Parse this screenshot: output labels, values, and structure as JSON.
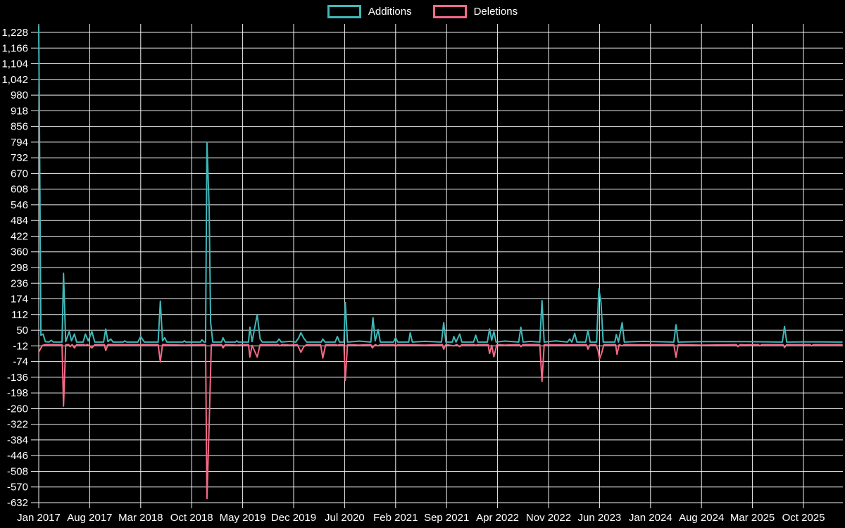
{
  "legend": {
    "items": [
      {
        "label": "Additions",
        "color": "#3fb8ba"
      },
      {
        "label": "Deletions",
        "color": "#f46a87"
      }
    ]
  },
  "chart_data": {
    "type": "line",
    "title": "",
    "xlabel": "",
    "ylabel": "",
    "grid": true,
    "legend_position": "top-center",
    "background_color": "#000000",
    "grid_color": "#f0f0f0",
    "text_color": "#ffffff",
    "x_axis": {
      "unit": "month index from Jan 2017",
      "tick_interval_months": 7,
      "tick_months": [
        0,
        7,
        14,
        21,
        28,
        35,
        42,
        49,
        56,
        63,
        70,
        77,
        84,
        91,
        98,
        105
      ],
      "tick_labels": [
        "Jan 2017",
        "Aug 2017",
        "Mar 2018",
        "Oct 2018",
        "May 2019",
        "Dec 2019",
        "Jul 2020",
        "Feb 2021",
        "Sep 2021",
        "Apr 2022",
        "Nov 2022",
        "Jun 2023",
        "Jan 2024",
        "Aug 2024",
        "Mar 2025",
        "Oct 2025"
      ],
      "domain_months": [
        0,
        110.3
      ]
    },
    "y_axis": {
      "tick_values": [
        1228,
        1166,
        1104,
        1042,
        980,
        918,
        856,
        794,
        732,
        670,
        608,
        546,
        484,
        422,
        360,
        298,
        236,
        174,
        112,
        50,
        -12,
        -74,
        -136,
        -198,
        -260,
        -322,
        -384,
        -446,
        -508,
        -570,
        -632
      ],
      "tick_labels": [
        "1,228",
        "1,166",
        "1,104",
        "1,042",
        "980",
        "918",
        "856",
        "794",
        "732",
        "670",
        "608",
        "546",
        "484",
        "422",
        "360",
        "298",
        "236",
        "174",
        "112",
        "50",
        "-12",
        "-74",
        "-136",
        "-198",
        "-260",
        "-322",
        "-384",
        "-446",
        "-508",
        "-570",
        "-632"
      ],
      "plot_top_value": 1253
    },
    "series": [
      {
        "name": "Additions",
        "color": "#3fb8ba",
        "points": [
          [
            0,
            1253
          ],
          [
            0.3,
            30
          ],
          [
            0.6,
            35
          ],
          [
            0.9,
            5
          ],
          [
            1.4,
            3
          ],
          [
            1.7,
            10
          ],
          [
            2,
            3
          ],
          [
            3.2,
            3
          ],
          [
            3.4,
            275
          ],
          [
            3.7,
            5
          ],
          [
            4.2,
            45
          ],
          [
            4.5,
            8
          ],
          [
            4.9,
            35
          ],
          [
            5.2,
            3
          ],
          [
            6.1,
            3
          ],
          [
            6.4,
            35
          ],
          [
            6.8,
            8
          ],
          [
            7.3,
            45
          ],
          [
            7.7,
            3
          ],
          [
            8.9,
            3
          ],
          [
            9.2,
            55
          ],
          [
            9.5,
            5
          ],
          [
            9.9,
            15
          ],
          [
            10.2,
            3
          ],
          [
            11.6,
            3
          ],
          [
            11.8,
            8
          ],
          [
            12.1,
            3
          ],
          [
            13.6,
            3
          ],
          [
            14,
            25
          ],
          [
            14.5,
            3
          ],
          [
            16.4,
            3
          ],
          [
            16.7,
            165
          ],
          [
            17,
            8
          ],
          [
            17.3,
            20
          ],
          [
            17.6,
            3
          ],
          [
            19.8,
            3
          ],
          [
            20,
            8
          ],
          [
            20.2,
            3
          ],
          [
            22.2,
            3
          ],
          [
            22.4,
            12
          ],
          [
            22.7,
            3
          ],
          [
            22.9,
            3
          ],
          [
            23.1,
            794
          ],
          [
            23.4,
            536
          ],
          [
            23.6,
            81
          ],
          [
            23.9,
            3
          ],
          [
            25.1,
            3
          ],
          [
            25.3,
            20
          ],
          [
            25.6,
            3
          ],
          [
            27,
            3
          ],
          [
            27.2,
            8
          ],
          [
            27.4,
            3
          ],
          [
            28.8,
            3
          ],
          [
            29,
            62
          ],
          [
            29.3,
            5
          ],
          [
            30,
            112
          ],
          [
            30.4,
            15
          ],
          [
            30.7,
            3
          ],
          [
            32.7,
            3
          ],
          [
            33,
            15
          ],
          [
            33.3,
            3
          ],
          [
            34.5,
            6
          ],
          [
            35.3,
            3
          ],
          [
            35.7,
            20
          ],
          [
            36,
            40
          ],
          [
            36.4,
            18
          ],
          [
            36.8,
            3
          ],
          [
            38.8,
            3
          ],
          [
            39,
            15
          ],
          [
            39.3,
            3
          ],
          [
            40.7,
            3
          ],
          [
            41,
            25
          ],
          [
            41.3,
            3
          ],
          [
            41.9,
            3
          ],
          [
            42.1,
            160
          ],
          [
            42.4,
            3
          ],
          [
            44,
            7
          ],
          [
            45.6,
            3
          ],
          [
            45.9,
            100
          ],
          [
            46.2,
            8
          ],
          [
            46.6,
            53
          ],
          [
            46.9,
            3
          ],
          [
            48.7,
            3
          ],
          [
            49,
            20
          ],
          [
            49.3,
            3
          ],
          [
            50.8,
            3
          ],
          [
            51,
            40
          ],
          [
            51.3,
            3
          ],
          [
            53,
            6
          ],
          [
            55.3,
            3
          ],
          [
            55.6,
            80
          ],
          [
            55.9,
            3
          ],
          [
            56.8,
            3
          ],
          [
            57,
            25
          ],
          [
            57.3,
            3
          ],
          [
            57.8,
            35
          ],
          [
            58.1,
            3
          ],
          [
            59.7,
            3
          ],
          [
            60,
            30
          ],
          [
            60.3,
            3
          ],
          [
            61.6,
            3
          ],
          [
            61.9,
            55
          ],
          [
            62.2,
            10
          ],
          [
            62.5,
            45
          ],
          [
            62.8,
            3
          ],
          [
            64,
            7
          ],
          [
            65.9,
            3
          ],
          [
            66.2,
            62
          ],
          [
            66.5,
            3
          ],
          [
            67.5,
            6
          ],
          [
            68.8,
            3
          ],
          [
            69.1,
            167
          ],
          [
            69.4,
            3
          ],
          [
            71,
            8
          ],
          [
            72.6,
            3
          ],
          [
            72.9,
            15
          ],
          [
            73.2,
            3
          ],
          [
            73.6,
            37
          ],
          [
            73.9,
            3
          ],
          [
            75.1,
            3
          ],
          [
            75.4,
            50
          ],
          [
            75.7,
            3
          ],
          [
            76.6,
            3
          ],
          [
            76.9,
            214
          ],
          [
            77.2,
            160
          ],
          [
            77.5,
            3
          ],
          [
            79.1,
            3
          ],
          [
            79.3,
            33
          ],
          [
            79.6,
            3
          ],
          [
            80.1,
            80
          ],
          [
            80.4,
            3
          ],
          [
            83,
            6
          ],
          [
            87.2,
            3
          ],
          [
            87.5,
            72
          ],
          [
            87.8,
            3
          ],
          [
            91,
            5
          ],
          [
            97,
            5
          ],
          [
            102.1,
            3
          ],
          [
            102.4,
            65
          ],
          [
            102.7,
            3
          ],
          [
            105,
            4
          ],
          [
            107,
            4
          ],
          [
            110.3,
            3
          ]
        ]
      },
      {
        "name": "Deletions",
        "color": "#f46a87",
        "points": [
          [
            0,
            -36
          ],
          [
            0.5,
            -10
          ],
          [
            1,
            -7
          ],
          [
            3.2,
            -7
          ],
          [
            3.4,
            -250
          ],
          [
            3.7,
            -8
          ],
          [
            4.1,
            -7
          ],
          [
            4.3,
            -15
          ],
          [
            4.6,
            -7
          ],
          [
            4.9,
            -20
          ],
          [
            5.2,
            -7
          ],
          [
            6.2,
            -7
          ],
          [
            6.4,
            -10
          ],
          [
            6.7,
            -7
          ],
          [
            7.3,
            -20
          ],
          [
            7.7,
            -7
          ],
          [
            9,
            -7
          ],
          [
            9.2,
            -30
          ],
          [
            9.5,
            -7
          ],
          [
            13.8,
            -7
          ],
          [
            14,
            -10
          ],
          [
            14.3,
            -7
          ],
          [
            16.4,
            -7
          ],
          [
            16.7,
            -75
          ],
          [
            17,
            -7
          ],
          [
            20,
            -9
          ],
          [
            22.9,
            -7
          ],
          [
            23.1,
            -616
          ],
          [
            23.4,
            -326
          ],
          [
            23.7,
            -7
          ],
          [
            25.1,
            -7
          ],
          [
            25.3,
            -20
          ],
          [
            25.6,
            -7
          ],
          [
            27.2,
            -9
          ],
          [
            28.8,
            -7
          ],
          [
            29,
            -56
          ],
          [
            29.3,
            -10
          ],
          [
            30,
            -56
          ],
          [
            30.4,
            -7
          ],
          [
            32.9,
            -7
          ],
          [
            33.1,
            -12
          ],
          [
            33.4,
            -7
          ],
          [
            34.5,
            -9
          ],
          [
            35.5,
            -7
          ],
          [
            36,
            -37
          ],
          [
            36.4,
            -15
          ],
          [
            36.8,
            -7
          ],
          [
            38.7,
            -7
          ],
          [
            39,
            -60
          ],
          [
            39.4,
            -7
          ],
          [
            40.8,
            -7
          ],
          [
            41,
            -10
          ],
          [
            41.3,
            -7
          ],
          [
            41.9,
            -7
          ],
          [
            42.1,
            -148
          ],
          [
            42.4,
            -7
          ],
          [
            44,
            -9
          ],
          [
            45.6,
            -7
          ],
          [
            45.8,
            -20
          ],
          [
            46.2,
            -7
          ],
          [
            46.6,
            -12
          ],
          [
            46.9,
            -7
          ],
          [
            48.8,
            -7
          ],
          [
            49,
            -15
          ],
          [
            49.3,
            -7
          ],
          [
            51,
            -8
          ],
          [
            53,
            -9
          ],
          [
            55.4,
            -7
          ],
          [
            55.6,
            -25
          ],
          [
            55.9,
            -7
          ],
          [
            57,
            -12
          ],
          [
            57.4,
            -7
          ],
          [
            57.8,
            -15
          ],
          [
            58.1,
            -7
          ],
          [
            59.8,
            -7
          ],
          [
            60,
            -10
          ],
          [
            60.3,
            -7
          ],
          [
            61.7,
            -7
          ],
          [
            61.9,
            -42
          ],
          [
            62.2,
            -10
          ],
          [
            62.5,
            -55
          ],
          [
            62.9,
            -7
          ],
          [
            64,
            -9
          ],
          [
            66,
            -7
          ],
          [
            66.2,
            -15
          ],
          [
            66.5,
            -7
          ],
          [
            68.8,
            -7
          ],
          [
            69.1,
            -153
          ],
          [
            69.4,
            -7
          ],
          [
            71,
            -8
          ],
          [
            73,
            -8
          ],
          [
            75.2,
            -7
          ],
          [
            75.4,
            -25
          ],
          [
            75.7,
            -7
          ],
          [
            76.5,
            -7
          ],
          [
            76.8,
            -30
          ],
          [
            77,
            -63
          ],
          [
            77.3,
            -40
          ],
          [
            77.6,
            -7
          ],
          [
            79.2,
            -7
          ],
          [
            79.4,
            -45
          ],
          [
            79.7,
            -7
          ],
          [
            80.1,
            -12
          ],
          [
            80.4,
            -7
          ],
          [
            83,
            -8
          ],
          [
            87.2,
            -7
          ],
          [
            87.5,
            -57
          ],
          [
            87.8,
            -7
          ],
          [
            91,
            -9
          ],
          [
            95.8,
            -7
          ],
          [
            96,
            -15
          ],
          [
            96.3,
            -7
          ],
          [
            97,
            -8
          ],
          [
            98.8,
            -7
          ],
          [
            99,
            -12
          ],
          [
            99.3,
            -7
          ],
          [
            102.2,
            -7
          ],
          [
            102.4,
            -18
          ],
          [
            102.7,
            -7
          ],
          [
            105.9,
            -7
          ],
          [
            106.1,
            -12
          ],
          [
            106.4,
            -7
          ],
          [
            110.3,
            -7
          ]
        ]
      }
    ]
  }
}
